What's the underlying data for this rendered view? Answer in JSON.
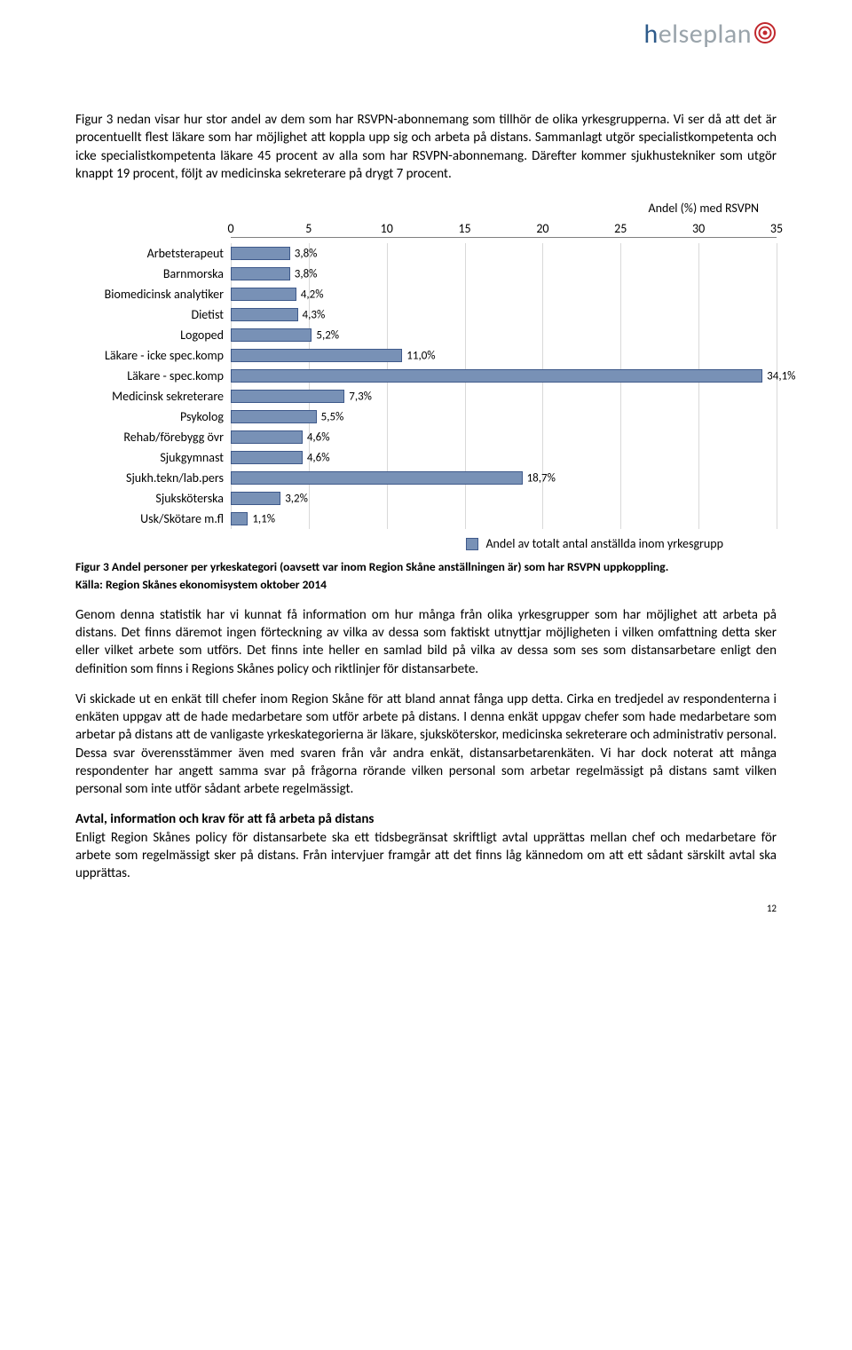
{
  "logo": {
    "h": "h",
    "rest": "elseplan"
  },
  "para1": "Figur 3 nedan visar hur stor andel av dem som har RSVPN-abonnemang som tillhör de olika yrkesgrupperna. Vi ser då att det är procentuellt flest läkare som har möjlighet att koppla upp sig och arbeta på distans. Sammanlagt utgör specialistkompetenta och icke specialistkompetenta läkare 45 procent av alla som har RSVPN-abonnemang. Därefter kommer sjukhustekniker som utgör knappt 19 procent, följt av medicinska sekreterare på drygt 7 procent.",
  "chart": {
    "title": "Andel (%) med RSVPN",
    "xmax": 35,
    "xtick_step": 5,
    "ticks": [
      0,
      5,
      10,
      15,
      20,
      25,
      30,
      35
    ],
    "bar_color": "#7891b6",
    "bar_border": "#3e598a",
    "categories": [
      {
        "label": "Arbetsterapeut",
        "value": 3.8,
        "text": "3,8%"
      },
      {
        "label": "Barnmorska",
        "value": 3.8,
        "text": "3,8%"
      },
      {
        "label": "Biomedicinsk analytiker",
        "value": 4.2,
        "text": "4,2%"
      },
      {
        "label": "Dietist",
        "value": 4.3,
        "text": "4,3%"
      },
      {
        "label": "Logoped",
        "value": 5.2,
        "text": "5,2%"
      },
      {
        "label": "Läkare - icke spec.komp",
        "value": 11.0,
        "text": "11,0%"
      },
      {
        "label": "Läkare - spec.komp",
        "value": 34.1,
        "text": "34,1%"
      },
      {
        "label": "Medicinsk sekreterare",
        "value": 7.3,
        "text": "7,3%"
      },
      {
        "label": "Psykolog",
        "value": 5.5,
        "text": "5,5%"
      },
      {
        "label": "Rehab/förebygg övr",
        "value": 4.6,
        "text": "4,6%"
      },
      {
        "label": "Sjukgymnast",
        "value": 4.6,
        "text": "4,6%"
      },
      {
        "label": "Sjukh.tekn/lab.pers",
        "value": 18.7,
        "text": "18,7%"
      },
      {
        "label": "Sjuksköterska",
        "value": 3.2,
        "text": "3,2%"
      },
      {
        "label": "Usk/Skötare m.fl",
        "value": 1.1,
        "text": "1,1%"
      }
    ],
    "legend": "Andel av totalt antal anställda inom yrkesgrupp"
  },
  "caption_main": "Figur 3 Andel personer per yrkeskategori (oavsett var inom Region Skåne anställningen är) som har RSVPN uppkoppling.",
  "caption_sub": "Källa: Region Skånes ekonomisystem oktober 2014",
  "para2": "Genom denna statistik har vi kunnat få information om hur många från olika yrkesgrupper som har möjlighet att arbeta på distans. Det finns däremot ingen förteckning av vilka av dessa som faktiskt utnyttjar möjligheten i vilken omfattning detta sker eller vilket arbete som utförs. Det finns inte heller en samlad bild på vilka av dessa som ses som distansarbetare enligt den definition som finns i Regions Skånes policy och riktlinjer för distansarbete.",
  "para3": "Vi skickade ut en enkät till chefer inom Region Skåne för att bland annat fånga upp detta. Cirka en tredjedel av respondenterna i enkäten uppgav att de hade medarbetare som utför arbete på distans. I denna enkät uppgav chefer som hade medarbetare som arbetar på distans att de vanligaste yrkeskategorierna är läkare, sjuksköterskor, medicinska sekreterare och administrativ personal. Dessa svar överensstämmer även med svaren från vår andra enkät, distansarbetarenkäten. Vi har dock noterat att många respondenter har angett samma svar på frågorna rörande vilken personal som arbetar regelmässigt på distans samt vilken personal som inte utför sådant arbete regelmässigt.",
  "section_heading": "Avtal, information och krav för att få arbeta på distans",
  "para4": "Enligt Region Skånes policy för distansarbete ska ett tidsbegränsat skriftligt avtal upprättas mellan chef och medarbetare för arbete som regelmässigt sker på distans. Från intervjuer framgår att det finns låg kännedom om att ett sådant särskilt avtal ska upprättas.",
  "page_number": "12"
}
